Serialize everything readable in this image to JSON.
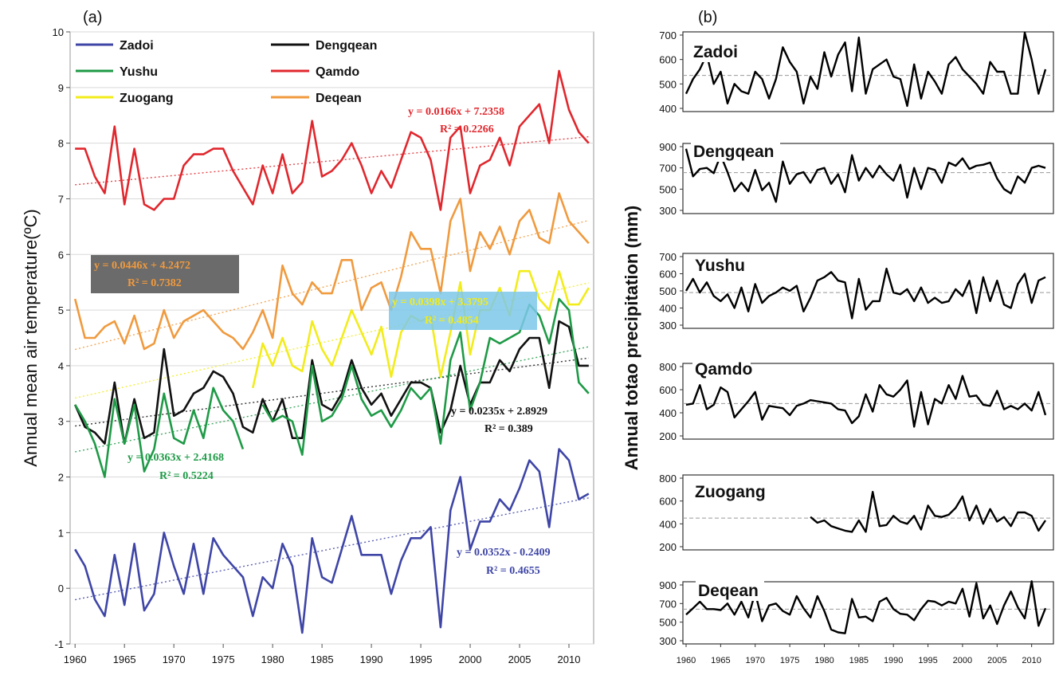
{
  "colors": {
    "Zadoi": "#3e45a6",
    "Dengqean": "#111111",
    "Yushu": "#1e9a46",
    "Qamdo": "#e0272d",
    "Zuogang": "#f2ec1a",
    "Deqean": "#f09a3e"
  },
  "chart_data": [
    {
      "id": "a",
      "type": "line",
      "panel_label": "(a)",
      "ylabel": "Annual mean air temperature(ºC)",
      "xlabel": "",
      "xlim": [
        1959.5,
        2012.5
      ],
      "ylim": [
        -1,
        10
      ],
      "xticks": [
        "1960",
        "1965",
        "1970",
        "1975",
        "1980",
        "1985",
        "1990",
        "1995",
        "2000",
        "2005",
        "2010"
      ],
      "yticks": [
        "-1",
        "0",
        "1",
        "2",
        "3",
        "4",
        "5",
        "6",
        "7",
        "8",
        "9",
        "10"
      ],
      "grid": true,
      "legend_placement": "top-left",
      "legend": [
        "Zadoi",
        "Dengqean",
        "Yushu",
        "Qamdo",
        "Zuogang",
        "Deqean"
      ],
      "series": [
        {
          "name": "Zadoi",
          "start": 1960,
          "values": [
            0.7,
            0.4,
            -0.2,
            -0.5,
            0.6,
            -0.3,
            0.8,
            -0.4,
            -0.1,
            1.0,
            0.4,
            -0.1,
            0.8,
            -0.1,
            0.9,
            0.6,
            0.4,
            0.2,
            -0.5,
            0.2,
            0.0,
            0.8,
            0.4,
            -0.8,
            0.9,
            0.2,
            0.1,
            0.7,
            1.3,
            0.6,
            0.6,
            0.6,
            -0.1,
            0.5,
            0.9,
            0.9,
            1.1,
            -0.7,
            1.4,
            2.0,
            0.7,
            1.2,
            1.2,
            1.6,
            1.4,
            1.8,
            2.3,
            2.1,
            1.1,
            2.5,
            2.3,
            1.6,
            1.7
          ]
        },
        {
          "name": "Dengqean",
          "start": 1960,
          "values": [
            3.3,
            2.9,
            2.8,
            2.6,
            3.7,
            2.6,
            3.4,
            2.7,
            2.8,
            4.3,
            3.1,
            3.2,
            3.5,
            3.6,
            3.9,
            3.8,
            3.5,
            2.9,
            2.8,
            3.4,
            3.0,
            3.4,
            2.7,
            2.7,
            4.1,
            3.3,
            3.2,
            3.5,
            4.1,
            3.6,
            3.3,
            3.5,
            3.1,
            3.4,
            3.7,
            3.7,
            3.6,
            2.8,
            3.2,
            4.0,
            3.3,
            3.7,
            3.7,
            4.1,
            3.9,
            4.3,
            4.5,
            4.5,
            3.6,
            4.8,
            4.7,
            4.0,
            4.0
          ]
        },
        {
          "name": "Yushu",
          "start": 1960,
          "values": [
            3.3,
            3.0,
            2.6,
            2.0,
            3.4,
            2.6,
            3.3,
            2.1,
            2.5,
            3.5,
            2.7,
            2.6,
            3.2,
            2.7,
            3.6,
            3.2,
            3.0,
            2.5,
            null,
            3.3,
            3.0,
            3.1,
            3.0,
            2.4,
            4.0,
            3.0,
            3.1,
            3.4,
            4.0,
            3.4,
            3.1,
            3.2,
            2.9,
            3.2,
            3.6,
            3.4,
            3.6,
            2.6,
            4.1,
            4.6,
            3.2,
            3.7,
            4.5,
            4.4,
            4.5,
            4.6,
            5.1,
            4.9,
            4.4,
            5.2,
            5.0,
            3.7,
            3.5
          ]
        },
        {
          "name": "Qamdo",
          "start": 1960,
          "values": [
            7.9,
            7.9,
            7.4,
            7.1,
            8.3,
            6.9,
            7.9,
            6.9,
            6.8,
            7.0,
            7.0,
            7.6,
            7.8,
            7.8,
            7.9,
            7.9,
            7.5,
            7.2,
            6.9,
            7.6,
            7.1,
            7.8,
            7.1,
            7.3,
            8.4,
            7.4,
            7.5,
            7.7,
            8.0,
            7.6,
            7.1,
            7.5,
            7.2,
            7.7,
            8.2,
            8.1,
            7.7,
            6.8,
            8.1,
            8.3,
            7.1,
            7.6,
            7.7,
            8.1,
            7.6,
            8.3,
            8.5,
            8.7,
            8.0,
            9.3,
            8.6,
            8.2,
            8.0
          ]
        },
        {
          "name": "Zuogang",
          "start": 1960,
          "values": [
            null,
            null,
            null,
            null,
            null,
            null,
            null,
            null,
            null,
            null,
            null,
            null,
            null,
            null,
            null,
            null,
            null,
            null,
            3.6,
            4.4,
            4.0,
            4.5,
            4.0,
            3.9,
            4.8,
            4.3,
            4.0,
            4.5,
            5.0,
            4.6,
            4.2,
            4.7,
            3.8,
            4.6,
            4.9,
            4.8,
            4.9,
            3.8,
            4.6,
            5.5,
            4.2,
            5.0,
            5.0,
            5.4,
            4.9,
            5.7,
            5.7,
            5.2,
            5.0,
            5.7,
            5.1,
            5.1,
            5.4
          ]
        },
        {
          "name": "Deqean",
          "start": 1960,
          "values": [
            5.2,
            4.5,
            4.5,
            4.7,
            4.8,
            4.4,
            4.9,
            4.3,
            4.4,
            5.0,
            4.5,
            4.8,
            4.9,
            5.0,
            4.8,
            4.6,
            4.5,
            4.3,
            4.6,
            5.0,
            4.5,
            5.8,
            5.3,
            5.1,
            5.5,
            5.3,
            5.3,
            5.9,
            5.9,
            5.0,
            5.4,
            5.5,
            5.0,
            5.6,
            6.4,
            6.1,
            6.1,
            5.3,
            6.6,
            7.0,
            5.7,
            6.4,
            6.1,
            6.5,
            6.0,
            6.6,
            6.8,
            6.3,
            6.2,
            7.1,
            6.6,
            6.4,
            6.2
          ]
        }
      ],
      "trendlines": [
        {
          "series": "Qamdo",
          "slope": 0.0166,
          "intercept": 7.2358,
          "x0": 1960,
          "x1": 2012
        },
        {
          "series": "Deqean",
          "slope": 0.0446,
          "intercept": 4.2472,
          "x0": 1960,
          "x1": 2012
        },
        {
          "series": "Zuogang",
          "slope": 0.0398,
          "intercept": 3.3795,
          "x0": 1960,
          "x1": 2012
        },
        {
          "series": "Dengqean",
          "slope": 0.0235,
          "intercept": 2.8929,
          "x0": 1960,
          "x1": 2012
        },
        {
          "series": "Yushu",
          "slope": 0.0363,
          "intercept": 2.4168,
          "x0": 1960,
          "x1": 2012
        },
        {
          "series": "Zadoi",
          "slope": 0.0352,
          "intercept": -0.2409,
          "x0": 1960,
          "x1": 2012
        }
      ],
      "annotations": [
        {
          "series": "Qamdo",
          "eq": "y = 0.0166x + 7.2358",
          "r2": "R² = 0.2266"
        },
        {
          "series": "Deqean",
          "eq": "y = 0.0446x + 4.2472",
          "r2": "R² = 0.7382"
        },
        {
          "series": "Zuogang",
          "eq": "y = 0.0398x + 3.3795",
          "r2": "R² = 0.4854"
        },
        {
          "series": "Dengqean",
          "eq": "y = 0.0235x + 2.8929",
          "r2": "R² = 0.389"
        },
        {
          "series": "Yushu",
          "eq": "y = 0.0363x + 2.4168",
          "r2": "R² = 0.5224"
        },
        {
          "series": "Zadoi",
          "eq": "y = 0.0352x - 0.2409",
          "r2": "R² = 0.4655"
        }
      ]
    },
    {
      "id": "b",
      "type": "line",
      "panel_label": "(b)",
      "ylabel": "Annual totao precipitation (mm)",
      "xlabel": "",
      "xlim": [
        1960,
        2012
      ],
      "xticks": [
        "1960",
        "1965",
        "1970",
        "1975",
        "1980",
        "1985",
        "1990",
        "1995",
        "2000",
        "2005",
        "2010"
      ],
      "subplots": [
        {
          "name": "Zadoi",
          "ylim": [
            400,
            700
          ],
          "yticks": [
            "400",
            "500",
            "600",
            "700"
          ],
          "mean": 535,
          "start": 1960,
          "values": [
            460,
            520,
            560,
            620,
            500,
            550,
            420,
            500,
            470,
            460,
            550,
            520,
            440,
            520,
            650,
            590,
            550,
            420,
            530,
            480,
            630,
            530,
            620,
            670,
            470,
            690,
            460,
            560,
            580,
            600,
            530,
            520,
            410,
            580,
            440,
            550,
            510,
            460,
            580,
            610,
            560,
            530,
            500,
            460,
            590,
            550,
            550,
            460,
            460,
            710,
            600,
            460,
            560
          ]
        },
        {
          "name": "Dengqean",
          "ylim": [
            300,
            900
          ],
          "yticks": [
            "300",
            "500",
            "700",
            "900"
          ],
          "mean": 655,
          "start": 1960,
          "values": [
            880,
            620,
            690,
            700,
            650,
            820,
            660,
            480,
            560,
            480,
            680,
            490,
            560,
            380,
            760,
            550,
            640,
            660,
            560,
            680,
            700,
            550,
            640,
            470,
            820,
            580,
            700,
            610,
            720,
            640,
            580,
            730,
            420,
            700,
            500,
            700,
            680,
            560,
            750,
            720,
            790,
            690,
            720,
            730,
            750,
            600,
            500,
            460,
            620,
            560,
            700,
            720,
            700
          ]
        },
        {
          "name": "Yushu",
          "ylim": [
            300,
            700
          ],
          "yticks": [
            "300",
            "400",
            "500",
            "600",
            "700"
          ],
          "mean": 490,
          "start": 1960,
          "values": [
            500,
            570,
            490,
            550,
            470,
            440,
            480,
            400,
            520,
            380,
            540,
            430,
            470,
            490,
            520,
            500,
            530,
            380,
            460,
            560,
            580,
            610,
            560,
            550,
            340,
            570,
            390,
            440,
            440,
            630,
            490,
            480,
            510,
            440,
            520,
            430,
            460,
            430,
            440,
            510,
            470,
            560,
            370,
            580,
            440,
            560,
            420,
            400,
            540,
            600,
            430,
            560,
            580
          ]
        },
        {
          "name": "Qamdo",
          "ylim": [
            200,
            800
          ],
          "yticks": [
            "200",
            "400",
            "600",
            "800"
          ],
          "mean": 480,
          "start": 1960,
          "values": [
            470,
            480,
            640,
            430,
            470,
            620,
            580,
            360,
            430,
            500,
            580,
            340,
            460,
            450,
            440,
            380,
            460,
            480,
            510,
            500,
            490,
            480,
            430,
            420,
            310,
            370,
            560,
            410,
            640,
            560,
            540,
            600,
            680,
            280,
            580,
            300,
            520,
            480,
            640,
            520,
            720,
            540,
            550,
            470,
            460,
            590,
            430,
            460,
            430,
            480,
            420,
            580,
            380
          ]
        },
        {
          "name": "Zuogang",
          "ylim": [
            200,
            800
          ],
          "yticks": [
            "200",
            "400",
            "600",
            "800"
          ],
          "mean": 450,
          "start": 1960,
          "values": [
            null,
            null,
            null,
            null,
            null,
            null,
            null,
            null,
            null,
            null,
            null,
            null,
            null,
            null,
            null,
            null,
            null,
            null,
            460,
            410,
            430,
            380,
            360,
            340,
            330,
            430,
            330,
            680,
            380,
            390,
            470,
            420,
            400,
            470,
            350,
            560,
            470,
            460,
            480,
            540,
            640,
            430,
            560,
            400,
            530,
            420,
            460,
            380,
            500,
            500,
            470,
            340,
            430
          ]
        },
        {
          "name": "Deqean",
          "ylim": [
            300,
            900
          ],
          "yticks": [
            "300",
            "500",
            "700",
            "900"
          ],
          "mean": 640,
          "start": 1960,
          "values": [
            580,
            650,
            720,
            640,
            640,
            630,
            700,
            580,
            720,
            550,
            820,
            510,
            680,
            700,
            620,
            580,
            780,
            650,
            550,
            780,
            620,
            420,
            390,
            380,
            750,
            550,
            560,
            510,
            720,
            760,
            640,
            590,
            580,
            520,
            640,
            730,
            720,
            680,
            720,
            700,
            860,
            560,
            920,
            540,
            680,
            480,
            680,
            830,
            660,
            540,
            940,
            460,
            650
          ]
        }
      ]
    }
  ]
}
